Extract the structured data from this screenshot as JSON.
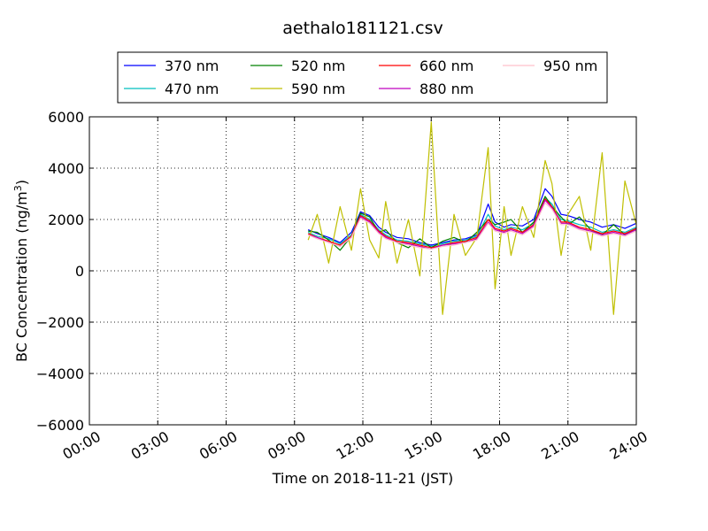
{
  "chart_data": {
    "type": "line",
    "title": "aethalo181121.csv",
    "xlabel": "Time on 2018-11-21 (JST)",
    "ylabel": "BC Concentration (ng/m³)",
    "ylabel_parts": {
      "main": "BC Concentration (ng/m",
      "sup": "3",
      "end": ")"
    },
    "x_unit": "hours",
    "xlim": [
      0,
      24
    ],
    "ylim": [
      -6000,
      6000
    ],
    "x_ticks": [
      0,
      3,
      6,
      9,
      12,
      15,
      18,
      21,
      24
    ],
    "x_tick_labels": [
      "00:00",
      "03:00",
      "06:00",
      "09:00",
      "12:00",
      "15:00",
      "18:00",
      "21:00",
      "24:00"
    ],
    "y_ticks": [
      -6000,
      -4000,
      -2000,
      0,
      2000,
      4000,
      6000
    ],
    "y_tick_labels": [
      "−6000",
      "−4000",
      "−2000",
      "0",
      "2000",
      "4000",
      "6000"
    ],
    "grid": true,
    "legend_position": "above-plot",
    "x": [
      9.6,
      10.0,
      10.5,
      11.0,
      11.5,
      11.9,
      12.3,
      12.7,
      13.0,
      13.5,
      14.0,
      14.5,
      15.0,
      15.5,
      16.0,
      16.5,
      17.0,
      17.5,
      17.8,
      18.2,
      18.5,
      19.0,
      19.5,
      20.0,
      20.3,
      20.7,
      21.0,
      21.5,
      22.0,
      22.5,
      23.0,
      23.5,
      24.0
    ],
    "series": [
      {
        "name": "370 nm",
        "color": "#0000ff",
        "values": [
          1600,
          1450,
          1300,
          1100,
          1500,
          2300,
          2150,
          1700,
          1500,
          1300,
          1250,
          1100,
          1000,
          1100,
          1200,
          1250,
          1400,
          2600,
          1900,
          1700,
          1800,
          1750,
          2000,
          3200,
          2900,
          2200,
          2150,
          2000,
          1900,
          1700,
          1800,
          1650,
          1850
        ]
      },
      {
        "name": "470 nm",
        "color": "#00bfbf",
        "values": [
          1500,
          1350,
          1250,
          1050,
          1400,
          2200,
          2000,
          1600,
          1400,
          1200,
          1150,
          1050,
          950,
          1050,
          1150,
          1200,
          1350,
          2200,
          1750,
          1600,
          1700,
          1600,
          1850,
          2850,
          2600,
          2000,
          1950,
          1800,
          1700,
          1500,
          1600,
          1500,
          1700
        ]
      },
      {
        "name": "520 nm",
        "color": "#008000",
        "values": [
          1550,
          1500,
          1200,
          800,
          1350,
          2250,
          2100,
          1500,
          1600,
          1100,
          900,
          1250,
          900,
          1150,
          1300,
          1100,
          1500,
          2000,
          1800,
          1900,
          2000,
          1500,
          1900,
          2900,
          2500,
          2100,
          1800,
          2100,
          1600,
          1400,
          1800,
          1400,
          1650
        ]
      },
      {
        "name": "590 nm",
        "color": "#bfbf00",
        "values": [
          1200,
          2200,
          300,
          2500,
          800,
          3200,
          1200,
          500,
          2700,
          300,
          2000,
          -200,
          5800,
          -1700,
          2200,
          600,
          1300,
          4800,
          -700,
          2500,
          600,
          2500,
          1300,
          4300,
          3400,
          600,
          2200,
          2900,
          800,
          4600,
          -1700,
          3500,
          1800
        ]
      },
      {
        "name": "660 nm",
        "color": "#ff0000",
        "values": [
          1450,
          1300,
          1150,
          1000,
          1350,
          2150,
          1950,
          1550,
          1350,
          1150,
          1100,
          1000,
          900,
          1000,
          1100,
          1150,
          1300,
          2000,
          1650,
          1550,
          1650,
          1500,
          1800,
          2800,
          2500,
          1900,
          1900,
          1700,
          1600,
          1450,
          1550,
          1450,
          1650
        ]
      },
      {
        "name": "880 nm",
        "color": "#bf00bf",
        "values": [
          1400,
          1300,
          1100,
          950,
          1300,
          2100,
          1900,
          1500,
          1300,
          1100,
          1050,
          950,
          850,
          1000,
          1050,
          1100,
          1250,
          1900,
          1600,
          1500,
          1600,
          1450,
          1750,
          2750,
          2450,
          1850,
          1850,
          1650,
          1550,
          1400,
          1500,
          1400,
          1600
        ]
      },
      {
        "name": "950 nm",
        "color": "#ffc0cb",
        "values": [
          1400,
          1250,
          1100,
          950,
          1300,
          2050,
          1850,
          1450,
          1250,
          1100,
          1000,
          900,
          850,
          950,
          1000,
          1100,
          1200,
          1850,
          1550,
          1450,
          1550,
          1400,
          1700,
          2650,
          2400,
          1800,
          1800,
          1600,
          1500,
          1350,
          1450,
          1350,
          1550
        ]
      }
    ]
  }
}
